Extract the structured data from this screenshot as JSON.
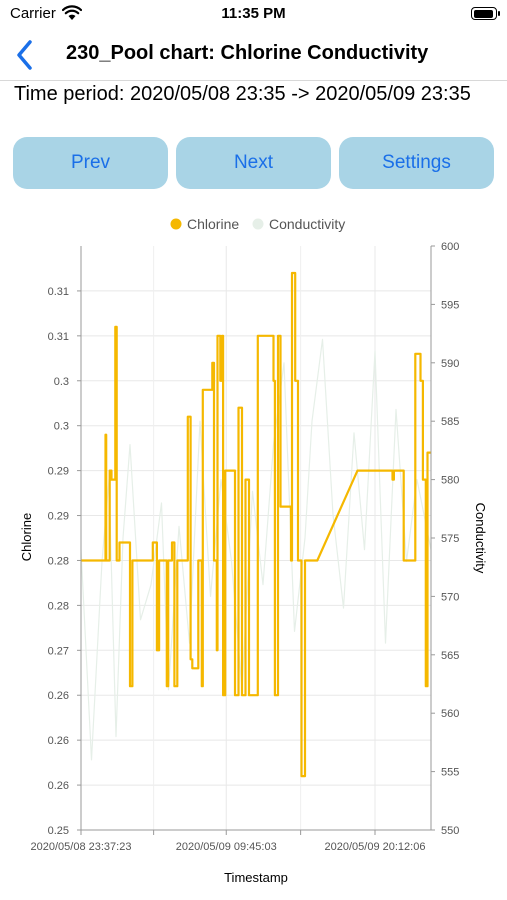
{
  "status_bar": {
    "carrier": "Carrier",
    "time": "11:35 PM"
  },
  "nav": {
    "title": "230_Pool chart:  Chlorine Conductivity"
  },
  "period": "Time period: 2020/05/08 23:35 -> 2020/05/09 23:35",
  "buttons": {
    "prev": "Prev",
    "next": "Next",
    "settings": "Settings"
  },
  "colors": {
    "chlorine": "#f5b800",
    "conductivity": "#e6efe8",
    "button_bg": "#a9d4e6",
    "button_text": "#1a6fe8"
  },
  "chart_data": {
    "type": "line",
    "xlabel": "Timestamp",
    "ylabel_left": "Chlorine",
    "ylabel_right": "Conductivity",
    "x_tick_labels": [
      "2020/05/08 23:37:23",
      "2020/05/09 09:45:03",
      "2020/05/09 20:12:06"
    ],
    "x_range": [
      0,
      100
    ],
    "x_tick_positions": [
      0,
      41.5,
      84
    ],
    "y_left": {
      "min": 0.25,
      "max": 0.315,
      "ticks": [
        0.25,
        0.255,
        0.26,
        0.265,
        0.27,
        0.275,
        0.28,
        0.285,
        0.29,
        0.295,
        0.3,
        0.305,
        0.31
      ],
      "tick_labels": [
        "0.25",
        "0.26",
        "0.26",
        "0.26",
        "0.27",
        "0.28",
        "0.28",
        "0.29",
        "0.29",
        "0.3",
        "0.3",
        "0.31",
        "0.31"
      ]
    },
    "y_right": {
      "min": 550,
      "max": 600,
      "ticks": [
        550,
        555,
        560,
        565,
        570,
        575,
        580,
        585,
        590,
        595,
        600
      ],
      "tick_labels": [
        "550",
        "555",
        "560",
        "565",
        "570",
        "575",
        "580",
        "585",
        "590",
        "595",
        "600"
      ]
    },
    "grid": true,
    "legend": "top-center",
    "series": [
      {
        "name": "Chlorine",
        "axis": "left",
        "color": "#f5b800",
        "x": [
          0,
          7,
          7,
          7.2,
          7.2,
          7.5,
          7.5,
          8.2,
          8.2,
          8.7,
          8.7,
          9.8,
          9.8,
          10.2,
          10.2,
          11,
          11,
          14,
          14,
          14.7,
          14.7,
          20.5,
          20.5,
          21.7,
          21.7,
          22.3,
          22.3,
          24.5,
          24.5,
          24.9,
          24.9,
          26,
          26,
          26.7,
          26.7,
          27.5,
          27.5,
          30.5,
          30.5,
          31.3,
          31.3,
          31.8,
          31.8,
          33.5,
          33.5,
          34.5,
          34.5,
          34.8,
          34.8,
          37.5,
          37.5,
          38,
          38,
          38.8,
          38.8,
          39,
          39,
          39.8,
          39.8,
          40.3,
          40.3,
          40.6,
          40.6,
          41.2,
          41.2,
          44,
          44,
          45,
          45,
          46,
          46,
          47,
          47,
          48,
          48,
          50.5,
          50.5,
          55,
          55,
          55.4,
          55.4,
          56.3,
          56.3,
          57,
          57,
          60,
          60,
          60.3,
          60.3,
          61.2,
          61.2,
          62,
          62,
          63,
          63,
          64,
          64,
          67.5,
          67.5,
          79,
          79,
          89,
          89,
          89.4,
          89.4,
          90.5,
          90.5,
          92.2,
          92.2,
          95.5,
          95.5,
          97,
          97,
          97.7,
          97.7,
          98.5,
          98.5,
          99,
          99,
          100
        ],
        "y": [
          0.28,
          0.28,
          0.294,
          0.294,
          0.28,
          0.28,
          0.28,
          0.28,
          0.29,
          0.29,
          0.289,
          0.289,
          0.306,
          0.306,
          0.28,
          0.28,
          0.282,
          0.282,
          0.266,
          0.266,
          0.28,
          0.28,
          0.282,
          0.282,
          0.27,
          0.27,
          0.28,
          0.28,
          0.266,
          0.266,
          0.28,
          0.28,
          0.282,
          0.282,
          0.266,
          0.266,
          0.28,
          0.28,
          0.296,
          0.296,
          0.269,
          0.269,
          0.268,
          0.268,
          0.28,
          0.28,
          0.266,
          0.266,
          0.299,
          0.299,
          0.302,
          0.302,
          0.28,
          0.28,
          0.27,
          0.27,
          0.305,
          0.305,
          0.3,
          0.3,
          0.305,
          0.305,
          0.265,
          0.265,
          0.29,
          0.29,
          0.265,
          0.265,
          0.297,
          0.297,
          0.265,
          0.265,
          0.289,
          0.289,
          0.265,
          0.265,
          0.305,
          0.305,
          0.3,
          0.3,
          0.265,
          0.265,
          0.305,
          0.305,
          0.286,
          0.286,
          0.28,
          0.28,
          0.312,
          0.312,
          0.3,
          0.3,
          0.28,
          0.28,
          0.256,
          0.256,
          0.28,
          0.28,
          0.28,
          0.29,
          0.29,
          0.29,
          0.289,
          0.289,
          0.29,
          0.29,
          0.29,
          0.29,
          0.28,
          0.28,
          0.303,
          0.303,
          0.3,
          0.3,
          0.289,
          0.289,
          0.266,
          0.266,
          0.292,
          0.292
        ]
      },
      {
        "name": "Conductivity",
        "axis": "right",
        "color": "#e6efe8",
        "x": [
          0,
          3,
          6,
          8,
          10,
          12,
          14,
          17,
          20,
          23,
          25,
          28,
          31,
          34,
          37,
          40,
          43,
          46,
          49,
          52,
          55,
          58,
          61,
          64,
          66,
          69,
          72,
          75,
          78,
          81,
          84,
          87,
          90,
          93,
          96,
          100
        ],
        "y": [
          574,
          556,
          573,
          580,
          558,
          575,
          583,
          568,
          571,
          578,
          562,
          576,
          566,
          585,
          570,
          580,
          573,
          562,
          579,
          571,
          583,
          590,
          567,
          575,
          585,
          592,
          577,
          569,
          584,
          574,
          591,
          566,
          586,
          573,
          580,
          574
        ]
      }
    ]
  }
}
